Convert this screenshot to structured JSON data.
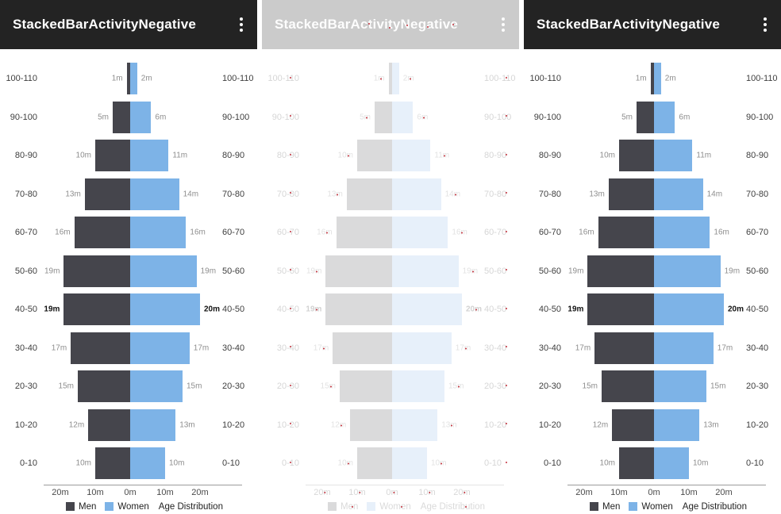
{
  "app": {
    "title": "StackedBarActivityNegative",
    "menu_icon": "kebab-menu-icon"
  },
  "panels": [
    {
      "name": "panel-left-actual",
      "variant": "normal"
    },
    {
      "name": "panel-middle-diff",
      "variant": "faded"
    },
    {
      "name": "panel-right-expected",
      "variant": "normal"
    }
  ],
  "colors": {
    "men": "#45454c",
    "women": "#7db3e7",
    "appbar_bg": "#232323",
    "appbar_fg": "#ffffff",
    "diff_mark_red": "#c4303c"
  },
  "chart_data": {
    "type": "bar",
    "subtype": "population-pyramid",
    "title": "Age Distribution",
    "unit": "m",
    "categories": [
      "100-110",
      "90-100",
      "80-90",
      "70-80",
      "60-70",
      "50-60",
      "40-50",
      "30-40",
      "20-30",
      "10-20",
      "0-10"
    ],
    "series": [
      {
        "name": "Men",
        "color": "#45454c",
        "direction": "negative-left",
        "values": [
          1,
          5,
          10,
          13,
          16,
          19,
          19,
          17,
          15,
          12,
          10
        ],
        "labels": [
          "1m",
          "5m",
          "10m",
          "13m",
          "16m",
          "19m",
          "19m",
          "17m",
          "15m",
          "12m",
          "10m"
        ]
      },
      {
        "name": "Women",
        "color": "#7db3e7",
        "direction": "positive-right",
        "values": [
          2,
          6,
          11,
          14,
          16,
          19,
          20,
          17,
          15,
          13,
          10
        ],
        "labels": [
          "2m",
          "6m",
          "11m",
          "14m",
          "16m",
          "19m",
          "20m",
          "17m",
          "15m",
          "13m",
          "10m"
        ]
      }
    ],
    "emphasized_category": "40-50",
    "x_ticks": [
      "20m",
      "10m",
      "0m",
      "10m",
      "20m"
    ],
    "x_tick_values": [
      -20,
      -10,
      0,
      10,
      20
    ],
    "x_range": [
      -25,
      25
    ],
    "grid": false,
    "legend_position": "bottom",
    "category_labels_shown": "both-sides"
  }
}
